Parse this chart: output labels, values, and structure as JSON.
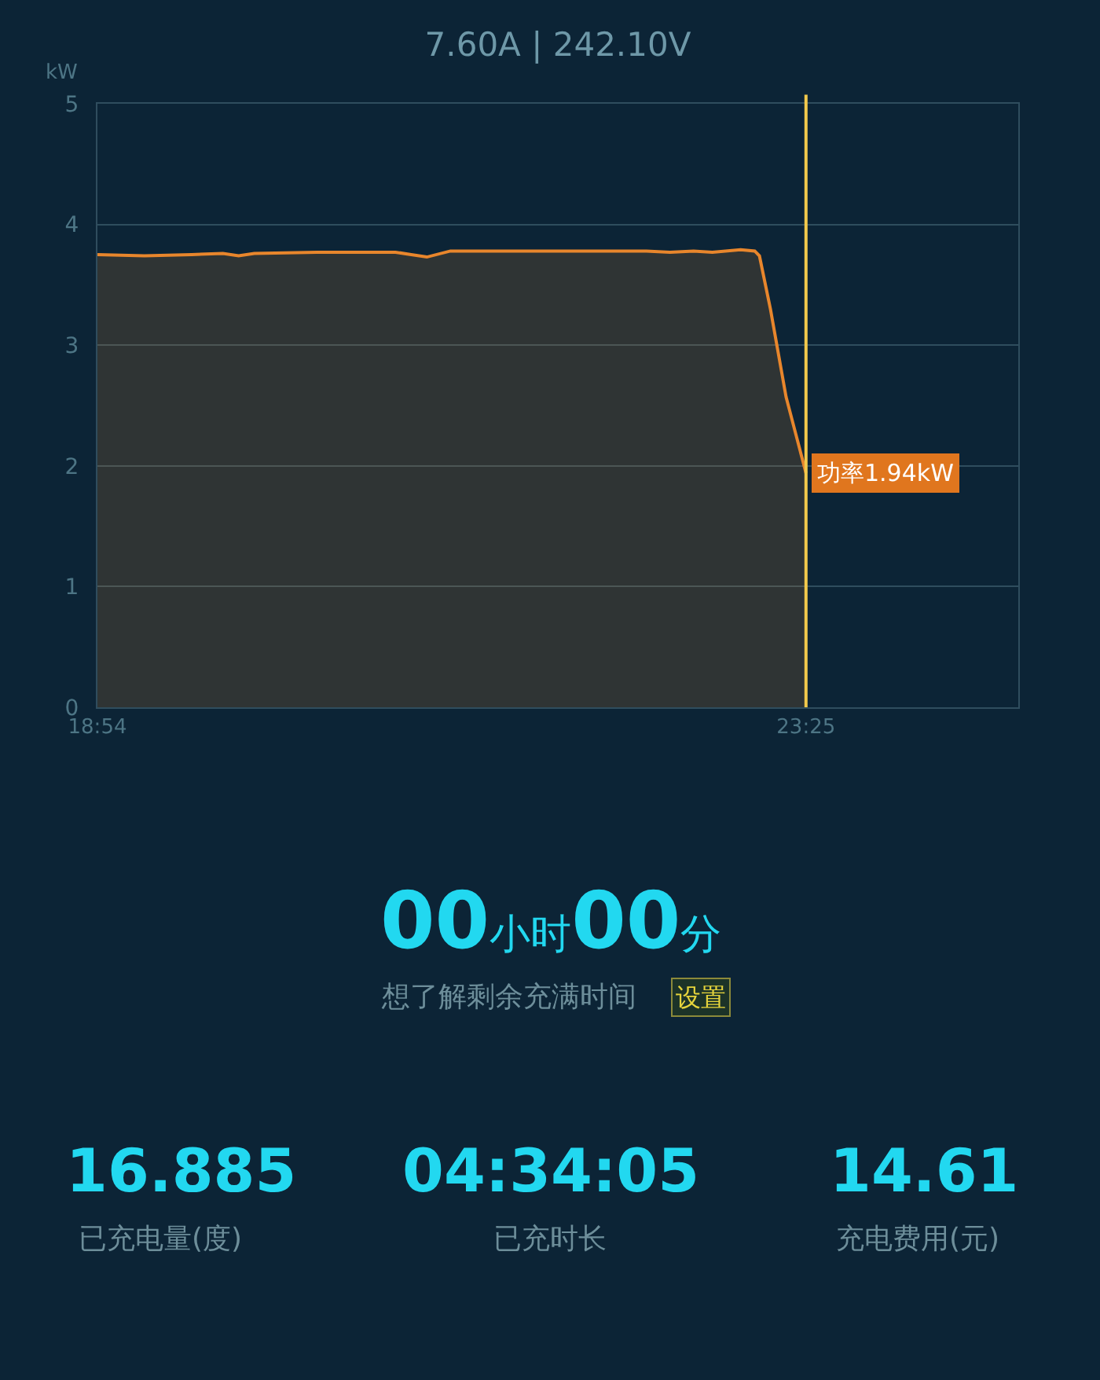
{
  "chart_data": {
    "type": "area",
    "title": "7.60A | 242.10V",
    "ylabel": "kW",
    "x": [
      18.9,
      19.2,
      19.5,
      19.7,
      19.8,
      19.9,
      20.3,
      20.8,
      20.9,
      21.0,
      21.15,
      21.8,
      22.4,
      22.55,
      22.7,
      22.82,
      23.0,
      23.09,
      23.12,
      23.19,
      23.29,
      23.4167
    ],
    "values": [
      3.75,
      3.74,
      3.75,
      3.76,
      3.74,
      3.76,
      3.77,
      3.77,
      3.75,
      3.73,
      3.78,
      3.78,
      3.78,
      3.77,
      3.78,
      3.77,
      3.79,
      3.78,
      3.74,
      3.3,
      2.57,
      1.94
    ],
    "color": "#e8862c",
    "xlim": [
      18.9,
      24.77
    ],
    "xticks": [
      {
        "value": 18.9,
        "label": "18:54"
      },
      {
        "value": 23.4167,
        "label": "23:25"
      }
    ],
    "ylim": [
      0,
      5
    ],
    "yticks": [
      0,
      1,
      2,
      3,
      4,
      5
    ],
    "grid": "y",
    "ref_lines": [
      {
        "axis": "x",
        "value": 23.4167,
        "color": "#f2c94c"
      }
    ],
    "annotations": [
      {
        "text": "功率1.94kW",
        "x": 23.4167,
        "y": 1.94
      },
      "00小时00分",
      "想了解剩余充满时间",
      "设置",
      "16.885",
      "已充电量(度)",
      "04:34:05",
      "已充时长",
      "14.61",
      "充电费用(元)"
    ]
  }
}
